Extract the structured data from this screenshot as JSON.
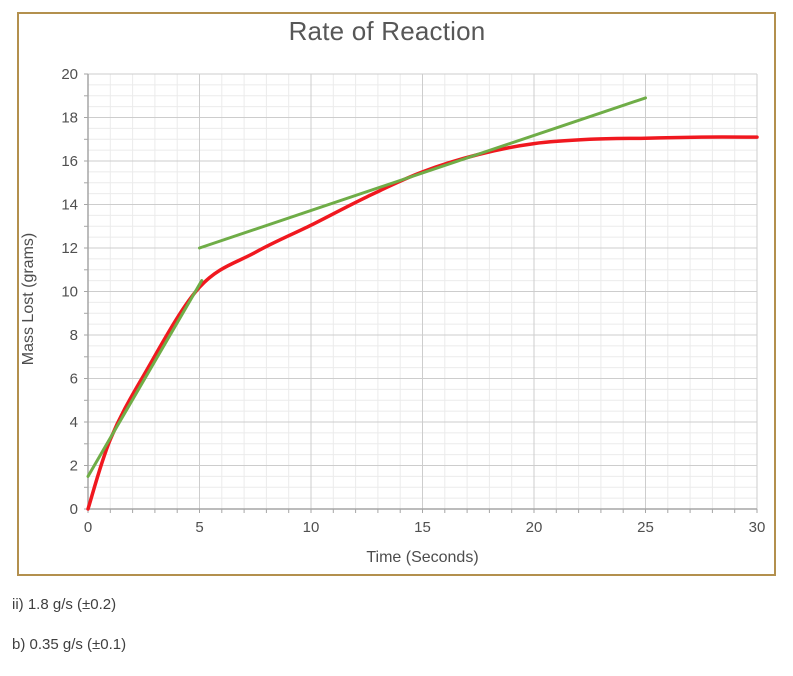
{
  "chart_data": {
    "type": "line",
    "title": "Rate of Reaction",
    "xlabel": "Time (Seconds)",
    "ylabel": "Mass Lost (grams)",
    "xlim": [
      0,
      30
    ],
    "ylim": [
      0,
      20
    ],
    "x_tick_values": [
      0,
      5,
      10,
      15,
      20,
      25,
      30
    ],
    "x_tick_labels": [
      "0",
      "5",
      "10",
      "15",
      "20",
      "25",
      "30"
    ],
    "y_tick_values": [
      0,
      2,
      4,
      6,
      8,
      10,
      12,
      14,
      16,
      18,
      20
    ],
    "y_tick_labels": [
      "0",
      "2",
      "4",
      "6",
      "8",
      "10",
      "12",
      "14",
      "16",
      "18",
      "20"
    ],
    "x_minor_step": 1,
    "y_minor_step": 0.5,
    "x_axis_minor_tick_step": 1,
    "y_axis_minor_tick_step": 1,
    "grid": "major and minor gridlines on",
    "legend": "none",
    "series": [
      {
        "name": "reaction-curve",
        "style": "smooth",
        "color": "#f0181f",
        "width": 3.5,
        "points": [
          [
            0,
            0
          ],
          [
            1,
            3.2
          ],
          [
            2.5,
            6.15
          ],
          [
            5,
            10.2
          ],
          [
            7.5,
            11.8
          ],
          [
            10,
            13.05
          ],
          [
            12.5,
            14.35
          ],
          [
            15,
            15.5
          ],
          [
            17.5,
            16.3
          ],
          [
            20,
            16.8
          ],
          [
            22.5,
            17.0
          ],
          [
            25,
            17.05
          ],
          [
            27.5,
            17.1
          ],
          [
            30,
            17.1
          ]
        ]
      },
      {
        "name": "tangent-initial",
        "style": "straight",
        "color": "#6fad47",
        "width": 3,
        "points": [
          [
            0,
            1.5
          ],
          [
            5.1,
            10.5
          ]
        ]
      },
      {
        "name": "tangent-late",
        "style": "straight",
        "color": "#6fad47",
        "width": 3,
        "points": [
          [
            5,
            12
          ],
          [
            25,
            18.9
          ]
        ]
      }
    ],
    "colors": {
      "frame_border": "#b3904e",
      "grid_minor": "#ebebeb",
      "grid_major": "#cdcdcd",
      "axis_line": "#a6a6a6",
      "text": "#4d4d4d"
    }
  },
  "page": {
    "annotations": [
      {
        "label": "ii) 1.8 g/s (±0.2)"
      },
      {
        "label": "b) 0.35 g/s (±0.1)"
      }
    ]
  }
}
